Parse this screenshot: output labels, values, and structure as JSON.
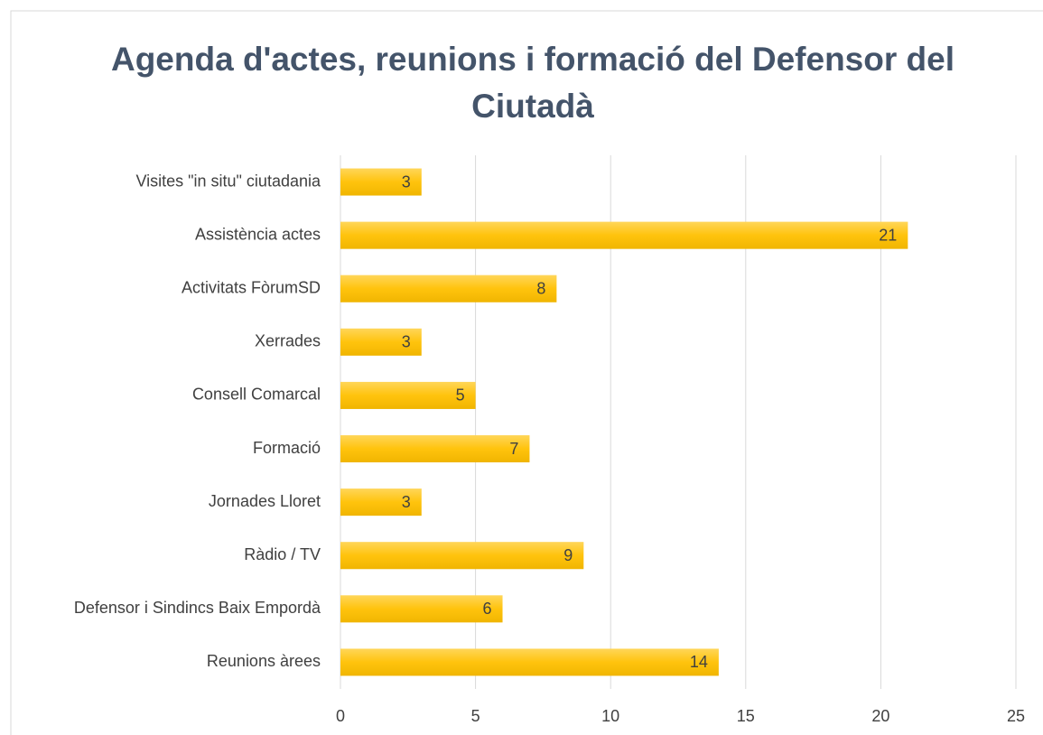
{
  "chart_data": {
    "type": "bar",
    "orientation": "horizontal",
    "title": "Agenda d'actes, reunions i formació del Defensor del Ciutadà",
    "categories": [
      "Visites \"in situ\" ciutadania",
      "Assistència actes",
      "Activitats FòrumSD",
      "Xerrades",
      "Consell Comarcal",
      "Formació",
      "Jornades Lloret",
      "Ràdio / TV",
      "Defensor i Sindincs Baix Empordà",
      "Reunions àrees"
    ],
    "values": [
      3,
      21,
      8,
      3,
      5,
      7,
      3,
      9,
      6,
      14
    ],
    "color": "#ffc000",
    "xlim": [
      0,
      25
    ],
    "xticks": [
      0,
      5,
      10,
      15,
      20,
      25
    ],
    "grid": true
  }
}
